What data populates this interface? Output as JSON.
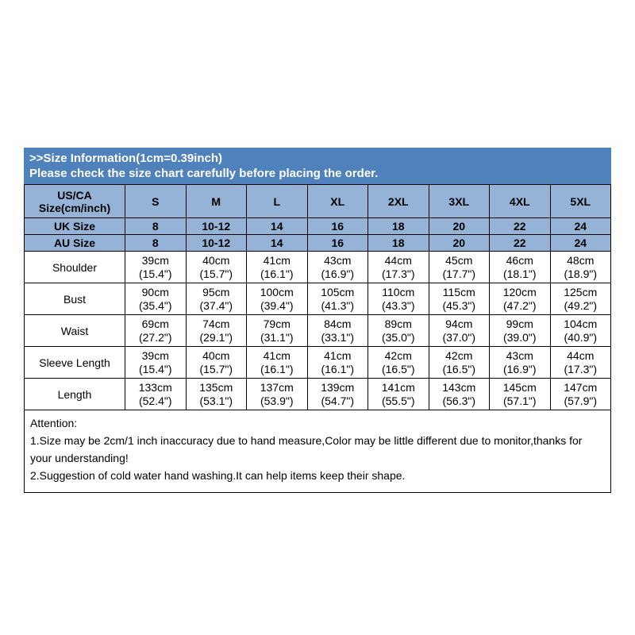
{
  "colors": {
    "header_bg": "#4f81bd",
    "subheader_bg": "#95b3d7",
    "border": "#000000"
  },
  "header": {
    "line1": ">>Size Information(1cm=0.39inch)",
    "line2": "Please check the size chart carefully before placing the order."
  },
  "table": {
    "corner_label": "US/CA\nSize(cm/inch)",
    "size_columns": [
      "S",
      "M",
      "L",
      "XL",
      "2XL",
      "3XL",
      "4XL",
      "5XL"
    ],
    "size_rows": [
      {
        "label": "UK Size",
        "values": [
          "8",
          "10-12",
          "14",
          "16",
          "18",
          "20",
          "22",
          "24"
        ]
      },
      {
        "label": "AU Size",
        "values": [
          "8",
          "10-12",
          "14",
          "16",
          "18",
          "20",
          "22",
          "24"
        ]
      }
    ],
    "measurement_rows": [
      {
        "label": "Shoulder",
        "values": [
          "39cm\n(15.4\")",
          "40cm\n(15.7\")",
          "41cm\n(16.1\")",
          "43cm\n(16.9\")",
          "44cm\n(17.3\")",
          "45cm\n(17.7\")",
          "46cm\n(18.1\")",
          "48cm\n(18.9\")"
        ]
      },
      {
        "label": "Bust",
        "values": [
          "90cm\n(35.4\")",
          "95cm\n(37.4\")",
          "100cm\n(39.4\")",
          "105cm\n(41.3\")",
          "110cm\n(43.3\")",
          "115cm\n(45.3\")",
          "120cm\n(47.2\")",
          "125cm\n(49.2\")"
        ]
      },
      {
        "label": "Waist",
        "values": [
          "69cm\n(27.2\")",
          "74cm\n(29.1\")",
          "79cm\n(31.1\")",
          "84cm\n(33.1\")",
          "89cm\n(35.0\")",
          "94cm\n(37.0\")",
          "99cm\n(39.0\")",
          "104cm\n(40.9\")"
        ]
      },
      {
        "label": "Sleeve Length",
        "values": [
          "39cm\n(15.4\")",
          "40cm\n(15.7\")",
          "41cm\n(16.1\")",
          "41cm\n(16.1\")",
          "42cm\n(16.5\")",
          "42cm\n(16.5\")",
          "43cm\n(16.9\")",
          "44cm\n(17.3\")"
        ]
      },
      {
        "label": "Length",
        "values": [
          "133cm\n(52.4\")",
          "135cm\n(53.1\")",
          "137cm\n(53.9\")",
          "139cm\n(54.7\")",
          "141cm\n(55.5\")",
          "143cm\n(56.3\")",
          "145cm\n(57.1\")",
          "147cm\n(57.9\")"
        ]
      }
    ]
  },
  "attention": {
    "title": "Attention:",
    "line1": "1.Size may be 2cm/1 inch inaccuracy due to hand measure,Color may be little different due to monitor,thanks for your understanding!",
    "line2": "2.Suggestion of cold water hand washing.It can help items keep their shape."
  }
}
